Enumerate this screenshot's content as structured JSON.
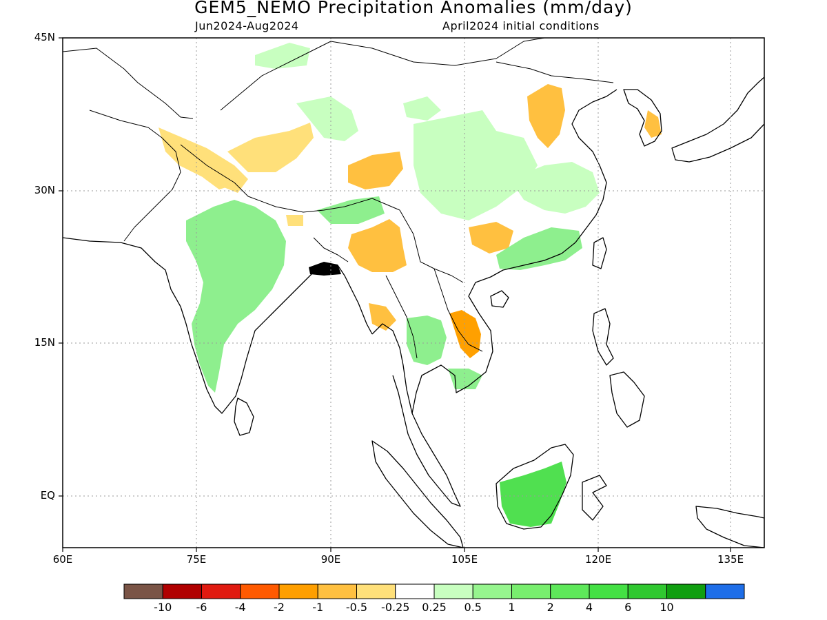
{
  "title": "GEM5_NEMO Precipitation Anomalies (mm/day)",
  "subtitle_left": "Jun2024-Aug2024",
  "subtitle_right": "April2024 initial conditions",
  "colors": {
    "frame": "#000000",
    "grid": "#9a9a9a",
    "coast": "#000000",
    "dry_light": "#ffe07a",
    "dry_medium": "#ffc040",
    "dry_strong": "#ffa000",
    "wet_light": "#c8ffc0",
    "wet_medium": "#8eef8e",
    "wet_strong": "#50e050"
  },
  "lat_labels": [
    "45N",
    "30N",
    "15N",
    "EQ"
  ],
  "lon_labels": [
    "60E",
    "75E",
    "90E",
    "105E",
    "120E",
    "135E"
  ],
  "colorbar": {
    "colors": [
      "#7a5446",
      "#b00000",
      "#e01a10",
      "#ff5a00",
      "#ff9f00",
      "#ffc040",
      "#ffe07a",
      "#ffffff",
      "#c8ffc0",
      "#96f58e",
      "#78ee6e",
      "#5ee85a",
      "#44e044",
      "#30c830",
      "#109f10",
      "#1e6ee8"
    ],
    "labels": [
      "-10",
      "-6",
      "-4",
      "-2",
      "-1",
      "-0.5",
      "-0.25",
      "0.25",
      "0.5",
      "1",
      "2",
      "4",
      "6",
      "10"
    ]
  },
  "regions": [
    {
      "name": "mongolia-wet",
      "level": "wet_light"
    },
    {
      "name": "north-china-wet",
      "level": "wet_light"
    },
    {
      "name": "tibet-dry",
      "level": "dry_light"
    },
    {
      "name": "tibet-dry-core",
      "level": "dry_medium"
    },
    {
      "name": "north-india-dry",
      "level": "dry_light"
    },
    {
      "name": "india-wet",
      "level": "wet_medium"
    },
    {
      "name": "south-china-wet",
      "level": "wet_medium"
    },
    {
      "name": "myanmar-dry",
      "level": "dry_medium"
    },
    {
      "name": "indochina-dry",
      "level": "dry_strong"
    },
    {
      "name": "thailand-wet",
      "level": "wet_medium"
    },
    {
      "name": "borneo-wet",
      "level": "wet_strong"
    },
    {
      "name": "korea-dry",
      "level": "dry_medium"
    },
    {
      "name": "north-china-dry",
      "level": "dry_medium"
    }
  ]
}
